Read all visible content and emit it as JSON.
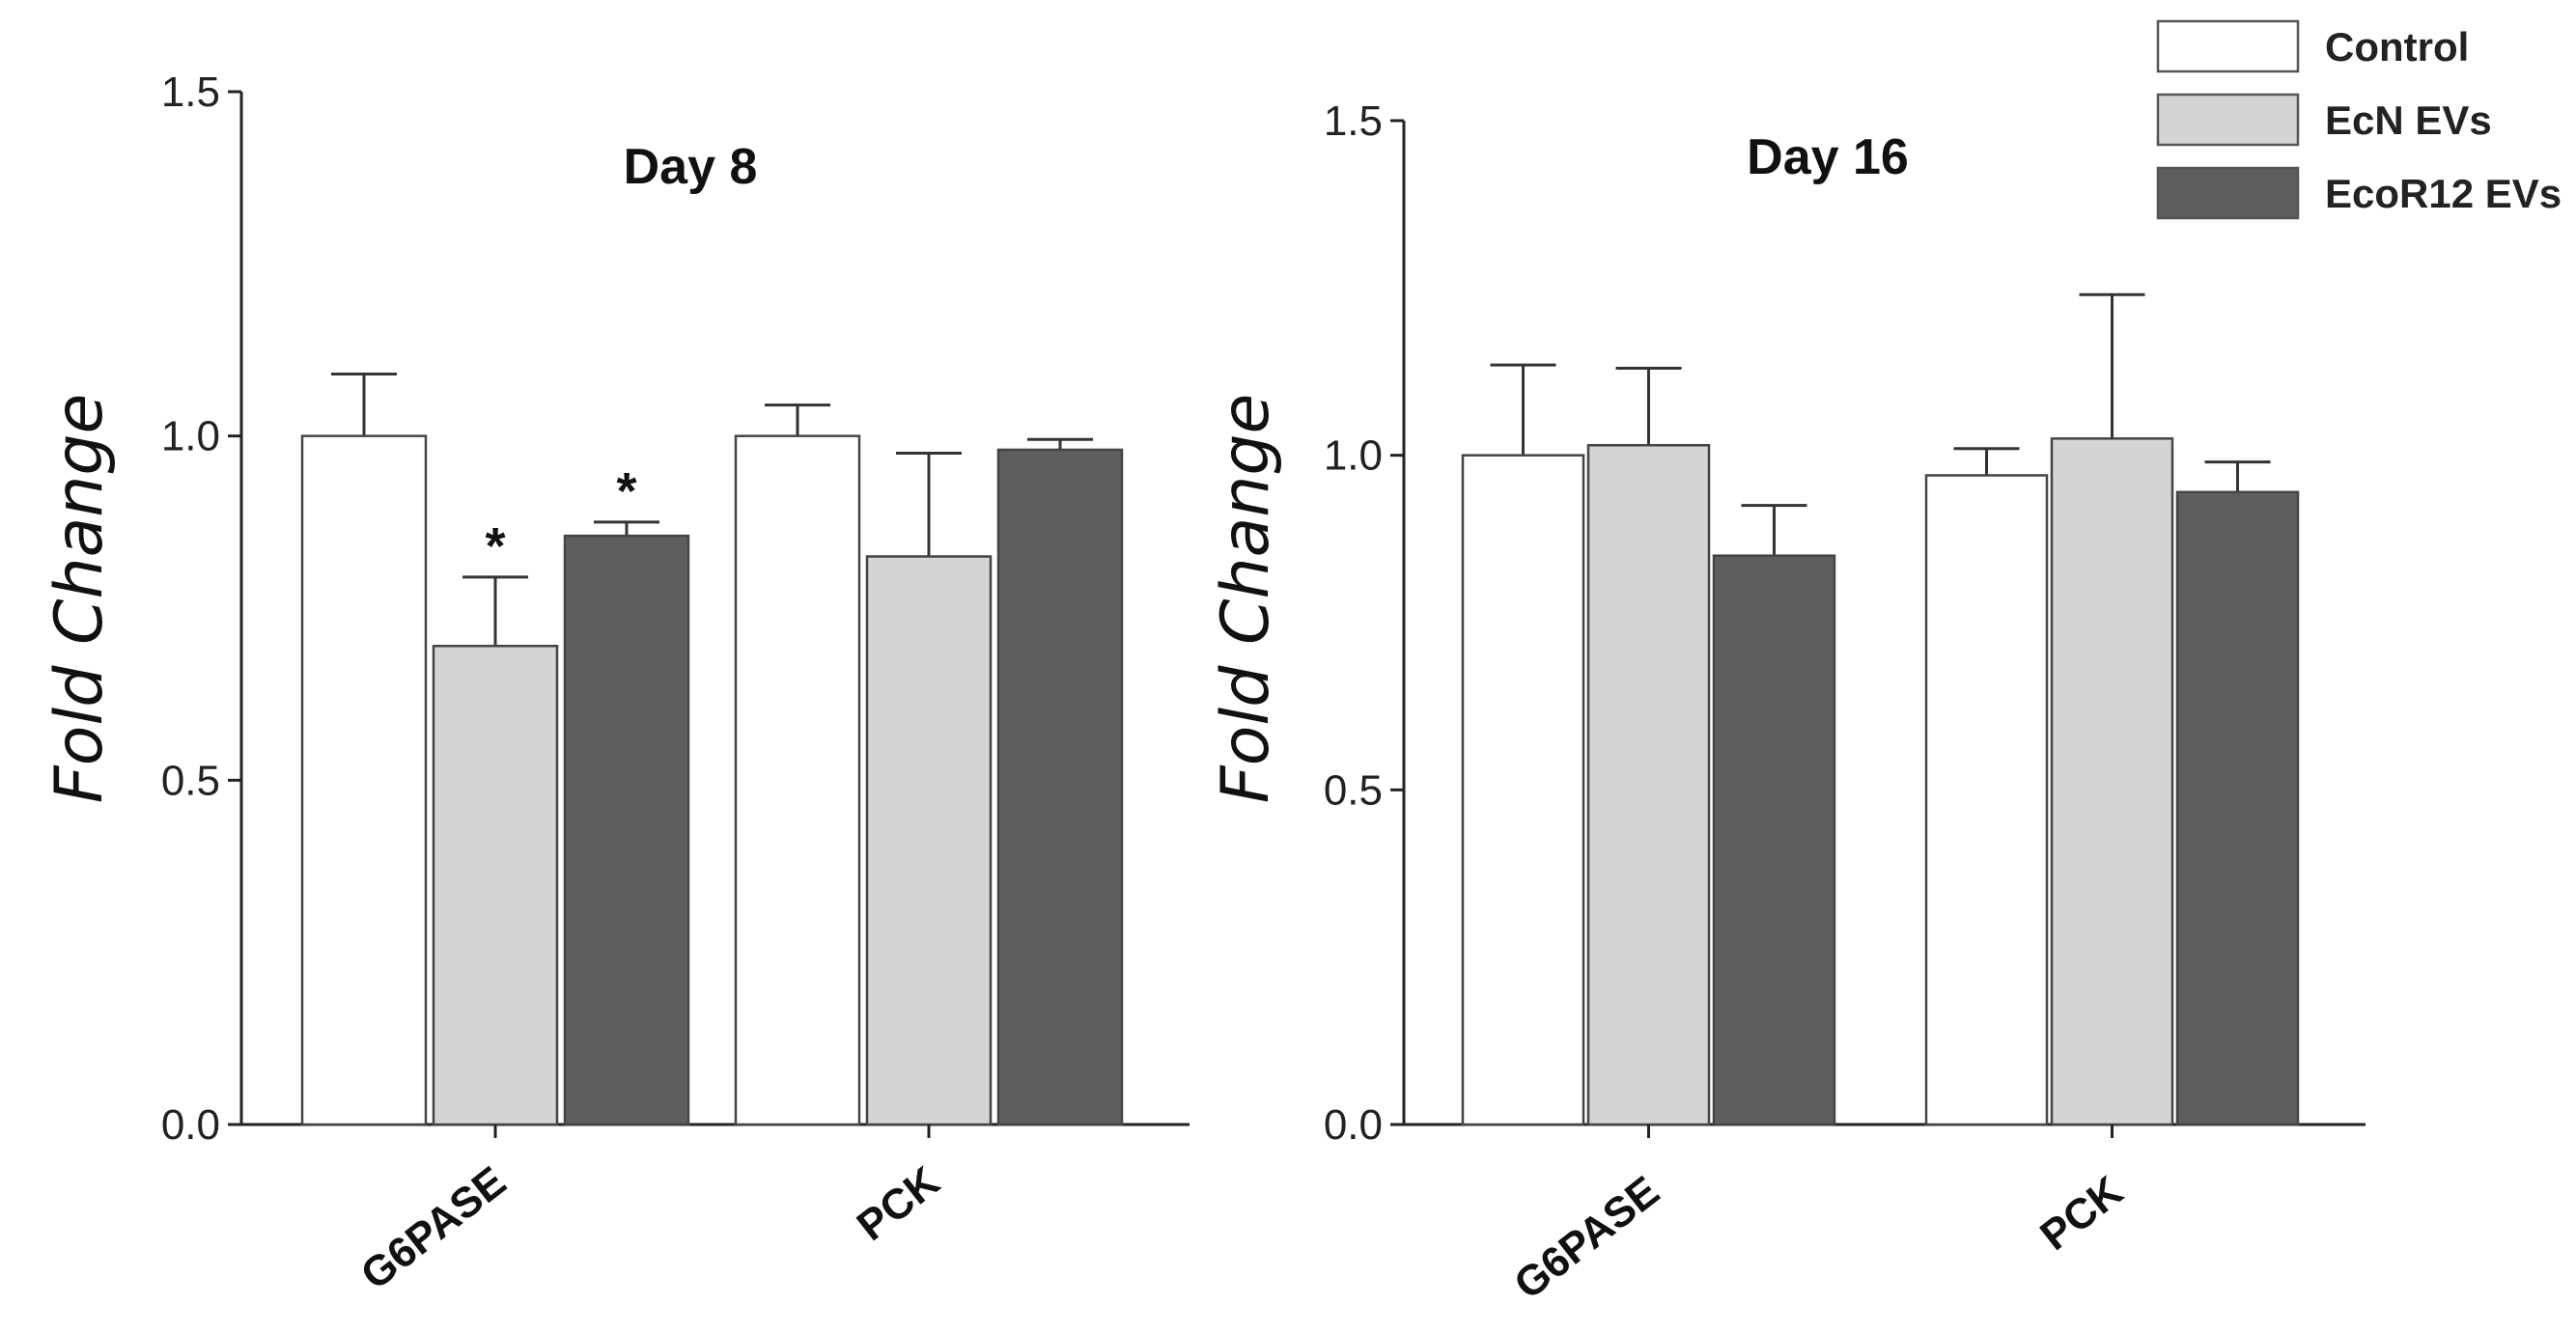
{
  "colors": {
    "Control": "#ffffff",
    "EcN EVs": "#d4d4d4",
    "EcoR12 EVs": "#5e5e5e"
  },
  "legend": {
    "entries": [
      "Control",
      "EcN EVs",
      "EcoR12 EVs"
    ],
    "position": "top-right"
  },
  "chart_data": [
    {
      "type": "bar",
      "title": "Day 8",
      "xlabel": "",
      "ylabel": "Fold Change",
      "ylim": [
        0,
        1.5
      ],
      "yticks": [
        0.0,
        0.5,
        1.0,
        1.5
      ],
      "ytick_labels": [
        "0.0",
        "0.5",
        "1.0",
        "1.5"
      ],
      "categories": [
        "G6PASE",
        "PCK"
      ],
      "series": [
        {
          "name": "Control",
          "values": [
            1.0,
            1.0
          ],
          "errors": [
            0.09,
            0.045
          ],
          "annotations": [
            "",
            ""
          ]
        },
        {
          "name": "EcN EVs",
          "values": [
            0.695,
            0.825
          ],
          "errors": [
            0.1,
            0.15
          ],
          "annotations": [
            "*",
            ""
          ]
        },
        {
          "name": "EcoR12 EVs",
          "values": [
            0.855,
            0.98
          ],
          "errors": [
            0.02,
            0.015
          ],
          "annotations": [
            "*",
            ""
          ]
        }
      ]
    },
    {
      "type": "bar",
      "title": "Day 16",
      "xlabel": "",
      "ylabel": "Fold Change",
      "ylim": [
        0,
        1.5
      ],
      "yticks": [
        0.0,
        0.5,
        1.0,
        1.5
      ],
      "ytick_labels": [
        "0.0",
        "0.5",
        "1.0",
        "1.5"
      ],
      "categories": [
        "G6PASE",
        "PCK"
      ],
      "series": [
        {
          "name": "Control",
          "values": [
            1.0,
            0.97
          ],
          "errors": [
            0.135,
            0.04
          ],
          "annotations": [
            "",
            ""
          ]
        },
        {
          "name": "EcN EVs",
          "values": [
            1.015,
            1.025
          ],
          "errors": [
            0.115,
            0.215
          ],
          "annotations": [
            "",
            ""
          ]
        },
        {
          "name": "EcoR12 EVs",
          "values": [
            0.85,
            0.945
          ],
          "errors": [
            0.075,
            0.045
          ],
          "annotations": [
            "",
            ""
          ]
        }
      ]
    }
  ]
}
